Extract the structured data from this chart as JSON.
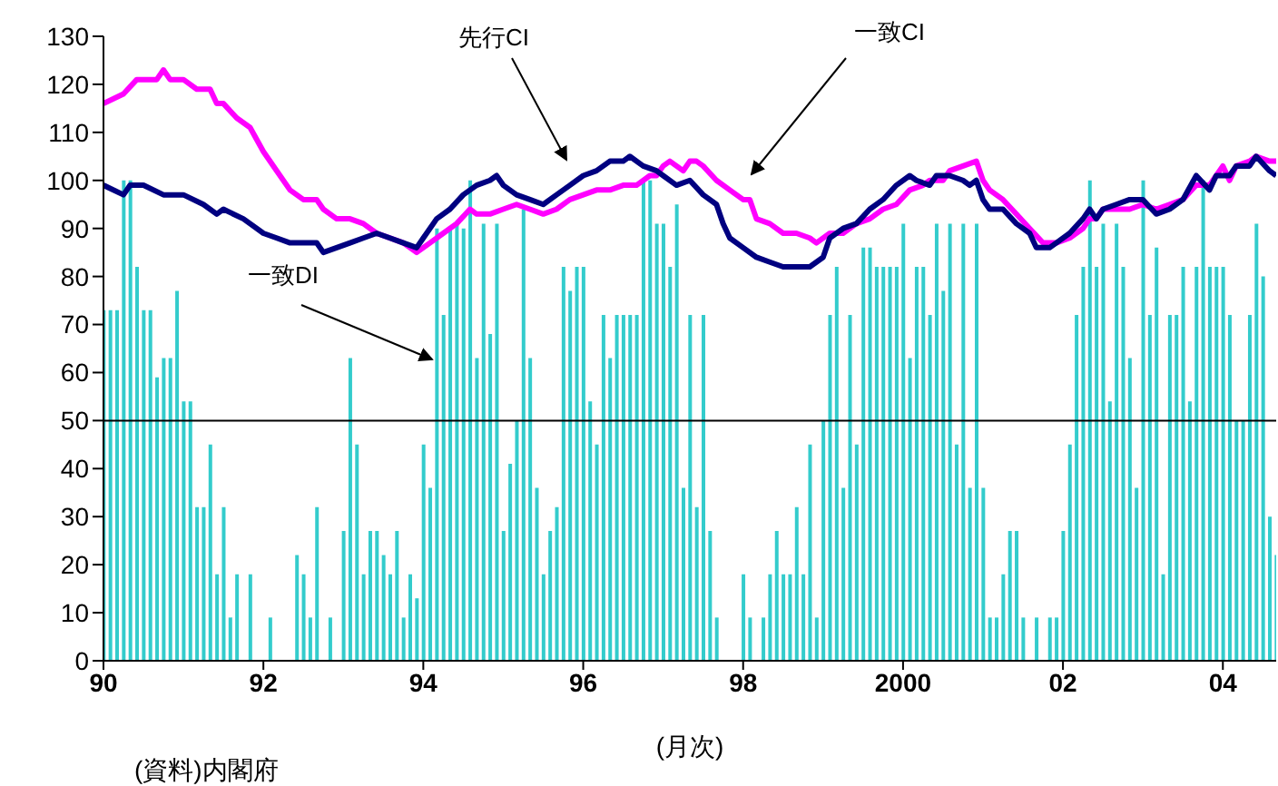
{
  "chart_data": {
    "type": "bar",
    "xlabel": "(月次)",
    "annotations": [
      "(資料)内閣府"
    ],
    "x": [
      "1990-01",
      "1990-02",
      "1990-03",
      "1990-04",
      "1990-05",
      "1990-06",
      "1990-07",
      "1990-08",
      "1990-09",
      "1990-10",
      "1990-11",
      "1990-12",
      "1991-01",
      "1991-02",
      "1991-03",
      "1991-04",
      "1991-05",
      "1991-06",
      "1991-07",
      "1991-08",
      "1991-09",
      "1991-10",
      "1991-11",
      "1991-12",
      "1992-01",
      "1992-02",
      "1992-03",
      "1992-04",
      "1992-05",
      "1992-06",
      "1992-07",
      "1992-08",
      "1992-09",
      "1992-10",
      "1992-11",
      "1992-12",
      "1993-01",
      "1993-02",
      "1993-03",
      "1993-04",
      "1993-05",
      "1993-06",
      "1993-07",
      "1993-08",
      "1993-09",
      "1993-10",
      "1993-11",
      "1993-12",
      "1994-01",
      "1994-02",
      "1994-03",
      "1994-04",
      "1994-05",
      "1994-06",
      "1994-07",
      "1994-08",
      "1994-09",
      "1994-10",
      "1994-11",
      "1994-12",
      "1995-01",
      "1995-02",
      "1995-03",
      "1995-04",
      "1995-05",
      "1995-06",
      "1995-07",
      "1995-08",
      "1995-09",
      "1995-10",
      "1995-11",
      "1995-12",
      "1996-01",
      "1996-02",
      "1996-03",
      "1996-04",
      "1996-05",
      "1996-06",
      "1996-07",
      "1996-08",
      "1996-09",
      "1996-10",
      "1996-11",
      "1996-12",
      "1997-01",
      "1997-02",
      "1997-03",
      "1997-04",
      "1997-05",
      "1997-06",
      "1997-07",
      "1997-08",
      "1997-09",
      "1997-10",
      "1997-11",
      "1997-12",
      "1998-01",
      "1998-02",
      "1998-03",
      "1998-04",
      "1998-05",
      "1998-06",
      "1998-07",
      "1998-08",
      "1998-09",
      "1998-10",
      "1998-11",
      "1998-12",
      "1999-01",
      "1999-02",
      "1999-03",
      "1999-04",
      "1999-05",
      "1999-06",
      "1999-07",
      "1999-08",
      "1999-09",
      "1999-10",
      "1999-11",
      "1999-12",
      "2000-01",
      "2000-02",
      "2000-03",
      "2000-04",
      "2000-05",
      "2000-06",
      "2000-07",
      "2000-08",
      "2000-09",
      "2000-10",
      "2000-11",
      "2000-12",
      "2001-01",
      "2001-02",
      "2001-03",
      "2001-04",
      "2001-05",
      "2001-06",
      "2001-07",
      "2001-08",
      "2001-09",
      "2001-10",
      "2001-11",
      "2001-12",
      "2002-01",
      "2002-02",
      "2002-03",
      "2002-04",
      "2002-05",
      "2002-06",
      "2002-07",
      "2002-08",
      "2002-09",
      "2002-10",
      "2002-11",
      "2002-12",
      "2003-01",
      "2003-02",
      "2003-03",
      "2003-04",
      "2003-05",
      "2003-06",
      "2003-07",
      "2003-08",
      "2003-09",
      "2003-10",
      "2003-11",
      "2003-12",
      "2004-01",
      "2004-02",
      "2004-03",
      "2004-04",
      "2004-05",
      "2004-06",
      "2004-07",
      "2004-08",
      "2004-09"
    ],
    "series": [
      {
        "name": "一致DI",
        "color": "#33cccc",
        "values": [
          73,
          73,
          73,
          100,
          100,
          82,
          73,
          73,
          59,
          63,
          63,
          77,
          54,
          54,
          32,
          32,
          45,
          18,
          32,
          9,
          18,
          0,
          18,
          0,
          0,
          9,
          0,
          0,
          0,
          22,
          18,
          9,
          32,
          0,
          9,
          0,
          27,
          63,
          45,
          18,
          27,
          27,
          22,
          18,
          27,
          9,
          18,
          13,
          45,
          36,
          90,
          72,
          90,
          91,
          90,
          100,
          63,
          91,
          68,
          91,
          27,
          41,
          50,
          94,
          63,
          36,
          18,
          27,
          32,
          82,
          77,
          82,
          82,
          54,
          45,
          72,
          63,
          72,
          72,
          72,
          72,
          100,
          100,
          91,
          91,
          82,
          95,
          36,
          72,
          32,
          72,
          27,
          9,
          0,
          0,
          0,
          18,
          9,
          0,
          9,
          18,
          27,
          18,
          18,
          32,
          18,
          45,
          9,
          50,
          72,
          82,
          36,
          72,
          45,
          86,
          86,
          82,
          82,
          82,
          82,
          91,
          63,
          82,
          82,
          72,
          91,
          77,
          91,
          45,
          91,
          36,
          91,
          36,
          9,
          9,
          18,
          27,
          27,
          9,
          0,
          9,
          0,
          9,
          9,
          27,
          45,
          72,
          82,
          100,
          82,
          91,
          54,
          91,
          82,
          63,
          36,
          100,
          72,
          86,
          18,
          72,
          72,
          82,
          54,
          82,
          100,
          82,
          82,
          82,
          72,
          50,
          50,
          72,
          91,
          80,
          30,
          22
        ]
      },
      {
        "name": "一致CI",
        "type": "line",
        "color": "#ff00ff",
        "x": [
          "1990-01",
          "1990-04",
          "1990-06",
          "1990-09",
          "1990-10",
          "1990-11",
          "1991-01",
          "1991-03",
          "1991-05",
          "1991-06",
          "1991-07",
          "1991-09",
          "1991-11",
          "1992-01",
          "1992-03",
          "1992-05",
          "1992-07",
          "1992-09",
          "1992-10",
          "1992-12",
          "1993-02",
          "1993-04",
          "1993-06",
          "1993-08",
          "1993-10",
          "1993-12",
          "1994-02",
          "1994-04",
          "1994-06",
          "1994-08",
          "1994-09",
          "1994-11",
          "1995-01",
          "1995-03",
          "1995-05",
          "1995-07",
          "1995-09",
          "1995-11",
          "1996-01",
          "1996-03",
          "1996-05",
          "1996-07",
          "1996-09",
          "1996-11",
          "1996-12",
          "1997-01",
          "1997-02",
          "1997-03",
          "1997-04",
          "1997-05",
          "1997-06",
          "1997-07",
          "1997-09",
          "1997-11",
          "1998-01",
          "1998-02",
          "1998-03",
          "1998-05",
          "1998-07",
          "1998-09",
          "1998-11",
          "1998-12",
          "1999-02",
          "1999-04",
          "1999-06",
          "1999-08",
          "1999-10",
          "1999-12",
          "2000-02",
          "2000-04",
          "2000-05",
          "2000-06",
          "2000-07",
          "2000-08",
          "2000-10",
          "2000-12",
          "2001-01",
          "2001-02",
          "2001-04",
          "2001-06",
          "2001-08",
          "2001-10",
          "2001-12",
          "2002-02",
          "2002-04",
          "2002-05",
          "2002-06",
          "2002-07",
          "2002-09",
          "2002-11",
          "2003-01",
          "2003-03",
          "2003-05",
          "2003-07",
          "2003-09",
          "2003-11",
          "2003-12",
          "2004-01",
          "2004-02",
          "2004-03",
          "2004-05",
          "2004-06",
          "2004-08",
          "2004-09"
        ],
        "values": [
          116,
          118,
          121,
          121,
          123,
          121,
          121,
          119,
          119,
          116,
          116,
          113,
          111,
          106,
          102,
          98,
          96,
          96,
          94,
          92,
          92,
          91,
          89,
          88,
          87,
          85,
          87,
          89,
          91,
          94,
          93,
          93,
          94,
          95,
          94,
          93,
          94,
          96,
          97,
          98,
          98,
          99,
          99,
          101,
          101,
          103,
          104,
          103,
          102,
          104,
          104,
          103,
          100,
          98,
          96,
          96,
          92,
          91,
          89,
          89,
          88,
          87,
          89,
          89,
          91,
          92,
          94,
          95,
          98,
          99,
          100,
          100,
          100,
          102,
          103,
          104,
          100,
          98,
          96,
          93,
          90,
          87,
          87,
          88,
          90,
          92,
          92,
          94,
          94,
          94,
          95,
          94,
          95,
          96,
          99,
          99,
          101,
          103,
          100,
          103,
          104,
          105,
          104,
          104
        ]
      },
      {
        "name": "先行CI",
        "type": "line",
        "color": "#000080",
        "x": [
          "1990-01",
          "1990-04",
          "1990-05",
          "1990-07",
          "1990-10",
          "1991-01",
          "1991-04",
          "1991-06",
          "1991-07",
          "1991-10",
          "1992-01",
          "1992-03",
          "1992-05",
          "1992-07",
          "1992-09",
          "1992-10",
          "1992-12",
          "1993-02",
          "1993-04",
          "1993-06",
          "1993-08",
          "1993-10",
          "1993-12",
          "1994-01",
          "1994-03",
          "1994-05",
          "1994-07",
          "1994-09",
          "1994-11",
          "1994-12",
          "1995-01",
          "1995-03",
          "1995-05",
          "1995-07",
          "1995-09",
          "1995-11",
          "1996-01",
          "1996-03",
          "1996-05",
          "1996-07",
          "1996-08",
          "1996-10",
          "1996-12",
          "1997-01",
          "1997-03",
          "1997-05",
          "1997-07",
          "1997-09",
          "1997-10",
          "1997-11",
          "1998-01",
          "1998-03",
          "1998-05",
          "1998-07",
          "1998-09",
          "1998-11",
          "1999-01",
          "1999-02",
          "1999-04",
          "1999-06",
          "1999-08",
          "1999-10",
          "1999-12",
          "2000-02",
          "2000-03",
          "2000-05",
          "2000-06",
          "2000-08",
          "2000-10",
          "2000-11",
          "2000-12",
          "2001-01",
          "2001-02",
          "2001-04",
          "2001-06",
          "2001-08",
          "2001-09",
          "2001-11",
          "2001-12",
          "2002-02",
          "2002-04",
          "2002-05",
          "2002-06",
          "2002-07",
          "2002-09",
          "2002-11",
          "2003-01",
          "2003-03",
          "2003-05",
          "2003-07",
          "2003-09",
          "2003-11",
          "2003-12",
          "2004-02",
          "2004-03",
          "2004-05",
          "2004-06",
          "2004-08",
          "2004-09"
        ],
        "values": [
          99,
          97,
          99,
          99,
          97,
          97,
          95,
          93,
          94,
          92,
          89,
          88,
          87,
          87,
          87,
          85,
          86,
          87,
          88,
          89,
          88,
          87,
          86,
          88,
          92,
          94,
          97,
          99,
          100,
          101,
          99,
          97,
          96,
          95,
          97,
          99,
          101,
          102,
          104,
          104,
          105,
          103,
          102,
          101,
          99,
          100,
          97,
          95,
          91,
          88,
          86,
          84,
          83,
          82,
          82,
          82,
          84,
          88,
          90,
          91,
          94,
          96,
          99,
          101,
          100,
          99,
          101,
          101,
          100,
          99,
          100,
          96,
          94,
          94,
          91,
          89,
          86,
          86,
          87,
          89,
          92,
          94,
          92,
          94,
          95,
          96,
          96,
          93,
          94,
          96,
          101,
          98,
          101,
          101,
          103,
          103,
          105,
          102,
          101
        ]
      }
    ],
    "xlim": [
      "1990-01",
      "2004-09"
    ],
    "xticks": [
      {
        "value": "1990-01",
        "label": "90"
      },
      {
        "value": "1992-01",
        "label": "92"
      },
      {
        "value": "1994-01",
        "label": "94"
      },
      {
        "value": "1996-01",
        "label": "96"
      },
      {
        "value": "1998-01",
        "label": "98"
      },
      {
        "value": "2000-01",
        "label": "2000"
      },
      {
        "value": "2002-01",
        "label": "02"
      },
      {
        "value": "2004-01",
        "label": "04"
      }
    ],
    "ylim": [
      0,
      130
    ],
    "yticks": [
      0,
      10,
      20,
      30,
      40,
      50,
      60,
      70,
      80,
      90,
      100,
      110,
      120,
      130
    ],
    "ref_lines": [
      {
        "axis": "y",
        "value": 50,
        "color": "#000000"
      }
    ],
    "grid": false,
    "legend": false
  }
}
